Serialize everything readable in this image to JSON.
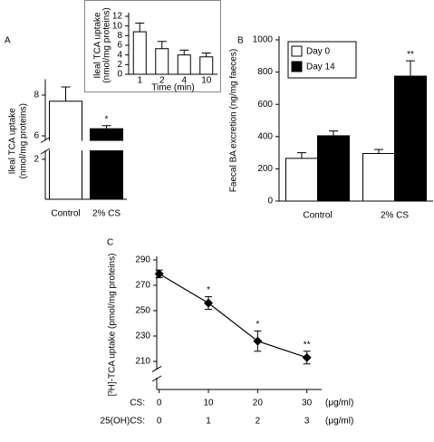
{
  "chart_data": [
    {
      "type": "bar",
      "panel": "A",
      "ylabel": [
        "Ileal TCA uptake",
        "(nmol/mg proteins)"
      ],
      "categories": [
        "Control",
        "2% CS"
      ],
      "values": [
        7.7,
        6.35
      ],
      "errors": [
        0.7,
        0.15
      ],
      "colors": [
        "#ffffff",
        "#000000"
      ],
      "annotations": [
        null,
        "*"
      ],
      "ylim": [
        0,
        8.6
      ],
      "ybreak": [
        2.4,
        5.8
      ],
      "yticks": [
        2,
        6,
        8
      ]
    },
    {
      "type": "bar",
      "ylabel": [
        "Ileal TCA uptake",
        "(nmol/mg proteins)"
      ],
      "xlabel": "Time (min)",
      "categories": [
        "1",
        "2",
        "4",
        "10"
      ],
      "values": [
        8.8,
        5.3,
        4.0,
        3.6
      ],
      "errors": [
        1.8,
        1.5,
        1.0,
        0.8
      ],
      "color": "#ffffff",
      "ylim": [
        0,
        12
      ],
      "yticks": [
        0,
        2,
        4,
        6,
        8,
        10,
        12
      ]
    },
    {
      "type": "bar",
      "panel": "B",
      "ylabel": "Faecal BA excretion (ng/mg faeces)",
      "categories": [
        "Control",
        "2% CS"
      ],
      "series": [
        {
          "name": "Day 0",
          "color": "#ffffff",
          "values": [
            265,
            295
          ],
          "errors": [
            35,
            25
          ]
        },
        {
          "name": "Day 14",
          "color": "#000000",
          "values": [
            405,
            775
          ],
          "errors": [
            30,
            95
          ],
          "annotations": [
            null,
            "**"
          ]
        }
      ],
      "legend": "upper left",
      "ylim": [
        0,
        1000
      ],
      "yticks": [
        0,
        200,
        400,
        600,
        800,
        1000
      ]
    },
    {
      "type": "line",
      "panel": "C",
      "ylabel": "[³H]-TCA uptake (pmol/mg proteins)",
      "x": [
        0,
        10,
        20,
        30
      ],
      "values": [
        279,
        256,
        226,
        213
      ],
      "errors": [
        3,
        5,
        8,
        5
      ],
      "annotations": [
        null,
        "*",
        "*",
        "**"
      ],
      "color": "#000000",
      "marker": "diamond",
      "xlim": [
        -0.5,
        33
      ],
      "ylim": [
        190,
        290
      ],
      "ybreak": [
        195,
        204
      ],
      "yticks": [
        210,
        230,
        250,
        270,
        290
      ],
      "xrows": [
        {
          "label": "CS:",
          "ticks": [
            0,
            10,
            20,
            30
          ],
          "unit": "(μg/ml)"
        },
        {
          "label": "25(OH)CS:",
          "ticks": [
            0,
            1,
            2,
            3
          ],
          "unit": "(μg/ml)"
        }
      ]
    }
  ]
}
